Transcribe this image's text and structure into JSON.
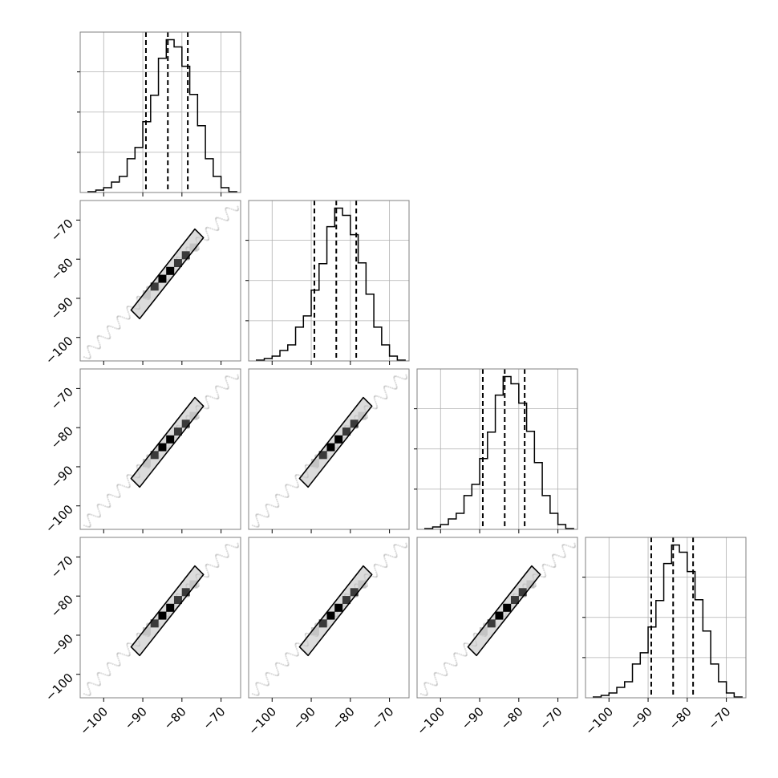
{
  "chart_data": {
    "type": "corner",
    "n_parameters": 4,
    "range": [
      -106,
      -65
    ],
    "tick_values": [
      -100,
      -90,
      -80,
      -70
    ],
    "tick_labels": [
      "−100",
      "−90",
      "−80",
      "−70"
    ],
    "grid": true,
    "histograms": [
      {
        "parameter_index": 0,
        "bin_edges": [
          -104,
          -102,
          -100,
          -98,
          -96,
          -94,
          -92,
          -90,
          -88,
          -86,
          -84,
          -82,
          -80,
          -78,
          -76,
          -74,
          -72,
          -70,
          -68,
          -66
        ],
        "counts": [
          1,
          3,
          6,
          13,
          20,
          42,
          56,
          88,
          121,
          167,
          190,
          181,
          157,
          122,
          83,
          42,
          20,
          6,
          1
        ],
        "quantiles": [
          -89.2,
          -83.6,
          -78.5
        ]
      },
      {
        "parameter_index": 1,
        "bin_edges": [
          -104,
          -102,
          -100,
          -98,
          -96,
          -94,
          -92,
          -90,
          -88,
          -86,
          -84,
          -82,
          -80,
          -78,
          -76,
          -74,
          -72,
          -70,
          -68,
          -66
        ],
        "counts": [
          1,
          3,
          6,
          13,
          20,
          42,
          56,
          88,
          121,
          167,
          190,
          181,
          157,
          122,
          83,
          42,
          20,
          6,
          1
        ],
        "quantiles": [
          -89.2,
          -83.6,
          -78.5
        ]
      },
      {
        "parameter_index": 2,
        "bin_edges": [
          -104,
          -102,
          -100,
          -98,
          -96,
          -94,
          -92,
          -90,
          -88,
          -86,
          -84,
          -82,
          -80,
          -78,
          -76,
          -74,
          -72,
          -70,
          -68,
          -66
        ],
        "counts": [
          1,
          3,
          6,
          13,
          20,
          42,
          56,
          88,
          121,
          167,
          190,
          181,
          157,
          122,
          83,
          42,
          20,
          6,
          1
        ],
        "quantiles": [
          -89.2,
          -83.6,
          -78.5
        ]
      },
      {
        "parameter_index": 3,
        "bin_edges": [
          -104,
          -102,
          -100,
          -98,
          -96,
          -94,
          -92,
          -90,
          -88,
          -86,
          -84,
          -82,
          -80,
          -78,
          -76,
          -74,
          -72,
          -70,
          -68,
          -66
        ],
        "counts": [
          1,
          3,
          6,
          13,
          20,
          42,
          56,
          88,
          121,
          167,
          190,
          181,
          157,
          122,
          83,
          42,
          20,
          6,
          1
        ],
        "quantiles": [
          -89.2,
          -83.6,
          -78.5
        ]
      }
    ],
    "joint_distribution": {
      "description": "samples lie along y = x",
      "center": [
        -84,
        -84
      ],
      "contour_ends": [
        [
          -93,
          -93
        ],
        [
          -74.5,
          -74.5
        ]
      ],
      "scatter_extent": [
        -105,
        -66
      ],
      "density_cells": [
        {
          "value": -89,
          "level": "light"
        },
        {
          "value": -87,
          "level": "dark"
        },
        {
          "value": -85,
          "level": "black"
        },
        {
          "value": -83,
          "level": "black"
        },
        {
          "value": -81,
          "level": "dark"
        },
        {
          "value": -79,
          "level": "dark"
        },
        {
          "value": -77,
          "level": "light"
        }
      ]
    },
    "colors": {
      "line": "#000000",
      "grid": "#b0b0b0",
      "spine": "#808080",
      "density_light": "#c4c4c4",
      "density_dark": "#3a3a3a",
      "density_black": "#000000"
    }
  }
}
